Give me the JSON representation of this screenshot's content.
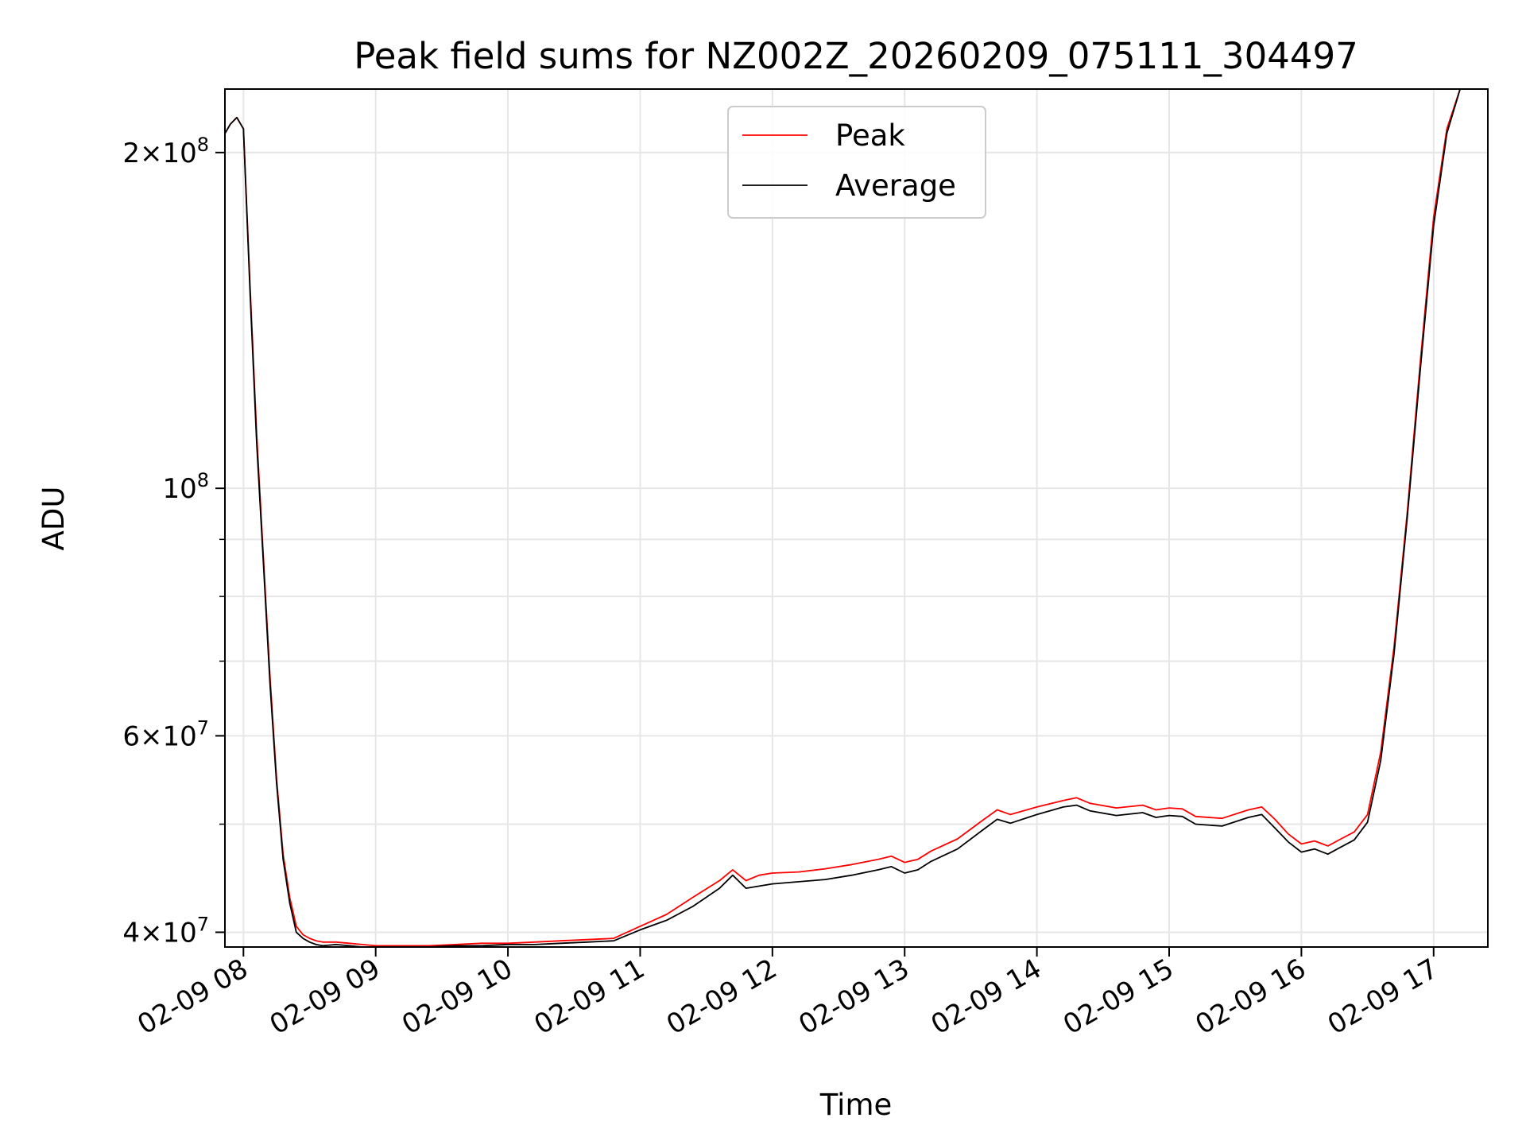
{
  "chart_data": {
    "type": "line",
    "title": "Peak field sums for NZ002Z_20260209_075111_304497",
    "xlabel": "Time",
    "ylabel": "ADU",
    "y_scale": "log",
    "xlim": [
      7.86,
      17.41
    ],
    "ylim": [
      38800000,
      228000000
    ],
    "grid": true,
    "legend_position": "top-center",
    "x_ticks": [
      {
        "value": 8,
        "label": "02-09 08"
      },
      {
        "value": 9,
        "label": "02-09 09"
      },
      {
        "value": 10,
        "label": "02-09 10"
      },
      {
        "value": 11,
        "label": "02-09 11"
      },
      {
        "value": 12,
        "label": "02-09 12"
      },
      {
        "value": 13,
        "label": "02-09 13"
      },
      {
        "value": 14,
        "label": "02-09 14"
      },
      {
        "value": 15,
        "label": "02-09 15"
      },
      {
        "value": 16,
        "label": "02-09 16"
      },
      {
        "value": 17,
        "label": "02-09 17"
      }
    ],
    "y_ticks": [
      {
        "value": 40000000,
        "mantissa": "4",
        "exponent": "7"
      },
      {
        "value": 60000000,
        "mantissa": "6",
        "exponent": "7"
      },
      {
        "value": 100000000,
        "mantissa": "",
        "exponent": "8"
      },
      {
        "value": 200000000,
        "mantissa": "2",
        "exponent": "8"
      }
    ],
    "y_minor_ticks": [
      50000000,
      70000000,
      80000000,
      90000000,
      300000000
    ],
    "series": [
      {
        "name": "Peak",
        "color": "#ff0000",
        "x": [
          7.86,
          7.9,
          7.95,
          8.0,
          8.05,
          8.1,
          8.15,
          8.2,
          8.25,
          8.3,
          8.35,
          8.4,
          8.45,
          8.5,
          8.55,
          8.6,
          8.7,
          8.8,
          8.9,
          9.0,
          9.2,
          9.4,
          9.6,
          9.8,
          10.0,
          10.2,
          10.4,
          10.6,
          10.8,
          11.0,
          11.2,
          11.4,
          11.6,
          11.7,
          11.8,
          11.9,
          12.0,
          12.2,
          12.4,
          12.6,
          12.8,
          12.9,
          13.0,
          13.1,
          13.2,
          13.4,
          13.6,
          13.7,
          13.8,
          14.0,
          14.2,
          14.3,
          14.4,
          14.6,
          14.8,
          14.9,
          15.0,
          15.1,
          15.2,
          15.4,
          15.6,
          15.7,
          15.8,
          15.9,
          16.0,
          16.1,
          16.2,
          16.3,
          16.4,
          16.5,
          16.6,
          16.7,
          16.8,
          16.9,
          17.0,
          17.1,
          17.2,
          17.3,
          17.41
        ],
        "values": [
          208000000,
          212000000,
          215000000,
          210000000,
          152000000,
          112000000,
          87000000,
          68000000,
          55000000,
          47000000,
          43000000,
          40500000,
          39800000,
          39500000,
          39300000,
          39200000,
          39200000,
          39100000,
          39000000,
          38900000,
          38900000,
          38900000,
          39000000,
          39100000,
          39100000,
          39200000,
          39300000,
          39400000,
          39500000,
          40500000,
          41500000,
          43000000,
          44500000,
          45500000,
          44500000,
          45000000,
          45200000,
          45300000,
          45600000,
          46000000,
          46500000,
          46800000,
          46200000,
          46500000,
          47300000,
          48500000,
          50500000,
          51500000,
          51000000,
          51800000,
          52500000,
          52800000,
          52200000,
          51700000,
          52000000,
          51500000,
          51700000,
          51600000,
          50800000,
          50600000,
          51500000,
          51800000,
          50500000,
          49000000,
          48000000,
          48300000,
          47800000,
          48500000,
          49200000,
          51000000,
          58000000,
          72000000,
          95000000,
          130000000,
          175000000,
          210000000,
          228000000,
          228000000,
          228000000
        ]
      },
      {
        "name": "Average",
        "color": "#000000",
        "x": [
          7.86,
          7.9,
          7.95,
          8.0,
          8.05,
          8.1,
          8.15,
          8.2,
          8.25,
          8.3,
          8.35,
          8.4,
          8.45,
          8.5,
          8.55,
          8.6,
          8.7,
          8.8,
          8.9,
          9.0,
          9.2,
          9.4,
          9.6,
          9.8,
          10.0,
          10.2,
          10.4,
          10.6,
          10.8,
          11.0,
          11.2,
          11.4,
          11.6,
          11.7,
          11.8,
          11.9,
          12.0,
          12.2,
          12.4,
          12.6,
          12.8,
          12.9,
          13.0,
          13.1,
          13.2,
          13.4,
          13.6,
          13.7,
          13.8,
          14.0,
          14.2,
          14.3,
          14.4,
          14.6,
          14.8,
          14.9,
          15.0,
          15.1,
          15.2,
          15.4,
          15.6,
          15.7,
          15.8,
          15.9,
          16.0,
          16.1,
          16.2,
          16.3,
          16.4,
          16.5,
          16.6,
          16.7,
          16.8,
          16.9,
          17.0,
          17.1,
          17.2,
          17.3,
          17.41
        ],
        "values": [
          208000000,
          212000000,
          215000000,
          210000000,
          150000000,
          110000000,
          86000000,
          67000000,
          54500000,
          46500000,
          42500000,
          40000000,
          39500000,
          39200000,
          39000000,
          38900000,
          39000000,
          38900000,
          38800000,
          38800000,
          38800000,
          38800000,
          38900000,
          38900000,
          39000000,
          39000000,
          39100000,
          39200000,
          39300000,
          40200000,
          41000000,
          42200000,
          43800000,
          45000000,
          43800000,
          44000000,
          44200000,
          44400000,
          44600000,
          45000000,
          45500000,
          45800000,
          45200000,
          45500000,
          46300000,
          47500000,
          49500000,
          50500000,
          50100000,
          51000000,
          51800000,
          52000000,
          51400000,
          50900000,
          51200000,
          50700000,
          50900000,
          50800000,
          50000000,
          49800000,
          50700000,
          51000000,
          49600000,
          48200000,
          47200000,
          47500000,
          47000000,
          47700000,
          48400000,
          50200000,
          57000000,
          71000000,
          94000000,
          128000000,
          172000000,
          208000000,
          228000000,
          228000000,
          228000000
        ]
      }
    ]
  }
}
